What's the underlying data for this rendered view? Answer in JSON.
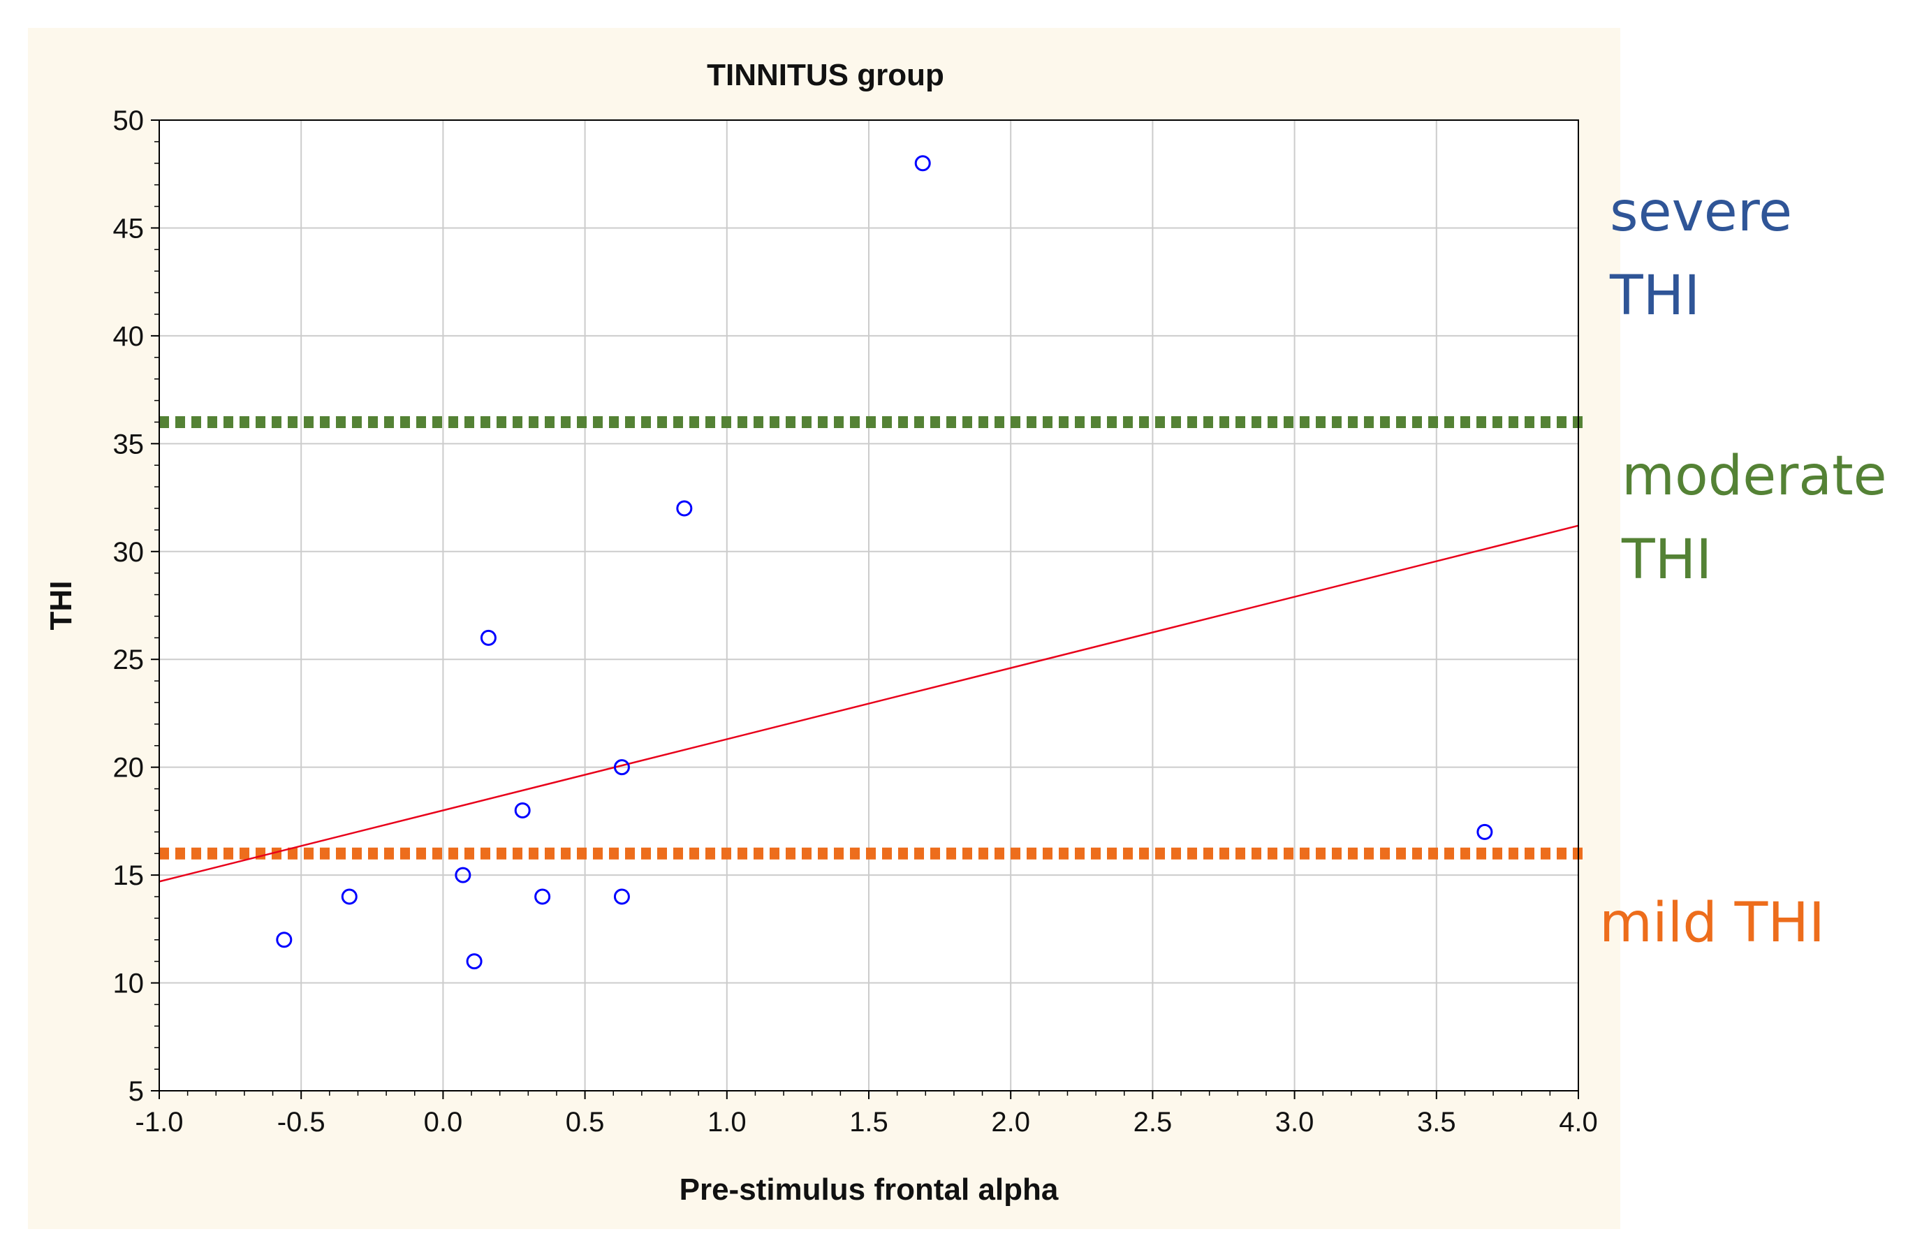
{
  "chart_data": {
    "type": "scatter",
    "title": "TINNITUS group",
    "xlabel": "Pre-stimulus frontal alpha",
    "ylabel": "THI",
    "xlim": [
      -1.0,
      4.0
    ],
    "ylim": [
      5,
      50
    ],
    "x_ticks": [
      "-1.0",
      "-0.5",
      "0.0",
      "0.5",
      "1.0",
      "1.5",
      "2.0",
      "2.5",
      "3.0",
      "3.5",
      "4.0"
    ],
    "y_ticks": [
      "5",
      "10",
      "15",
      "20",
      "25",
      "30",
      "35",
      "40",
      "45",
      "50"
    ],
    "grid": true,
    "points": [
      {
        "x": -0.56,
        "y": 12
      },
      {
        "x": -0.33,
        "y": 14
      },
      {
        "x": 0.07,
        "y": 15
      },
      {
        "x": 0.11,
        "y": 11
      },
      {
        "x": 0.16,
        "y": 26
      },
      {
        "x": 0.28,
        "y": 18
      },
      {
        "x": 0.35,
        "y": 14
      },
      {
        "x": 0.63,
        "y": 20
      },
      {
        "x": 0.63,
        "y": 14
      },
      {
        "x": 0.85,
        "y": 32
      },
      {
        "x": 1.69,
        "y": 48
      },
      {
        "x": 3.67,
        "y": 17
      }
    ],
    "fit_line": {
      "x": [
        -1.0,
        4.0
      ],
      "y": [
        14.7,
        31.2
      ]
    },
    "thresholds": [
      {
        "y": 36,
        "color": "#548235"
      },
      {
        "y": 16,
        "color": "#ed6d1c"
      }
    ],
    "band_labels": [
      {
        "lines": [
          "severe",
          "THI"
        ],
        "color": "#2f5597"
      },
      {
        "lines": [
          "moderate",
          "THI"
        ],
        "color": "#548235"
      },
      {
        "lines": [
          "mild THI"
        ],
        "color": "#ed6d1c"
      }
    ],
    "colors": {
      "points": "#0000ff",
      "fit_line": "#e8001a",
      "grid": "#cccccc",
      "panel_background": "#fdf8ec"
    }
  }
}
